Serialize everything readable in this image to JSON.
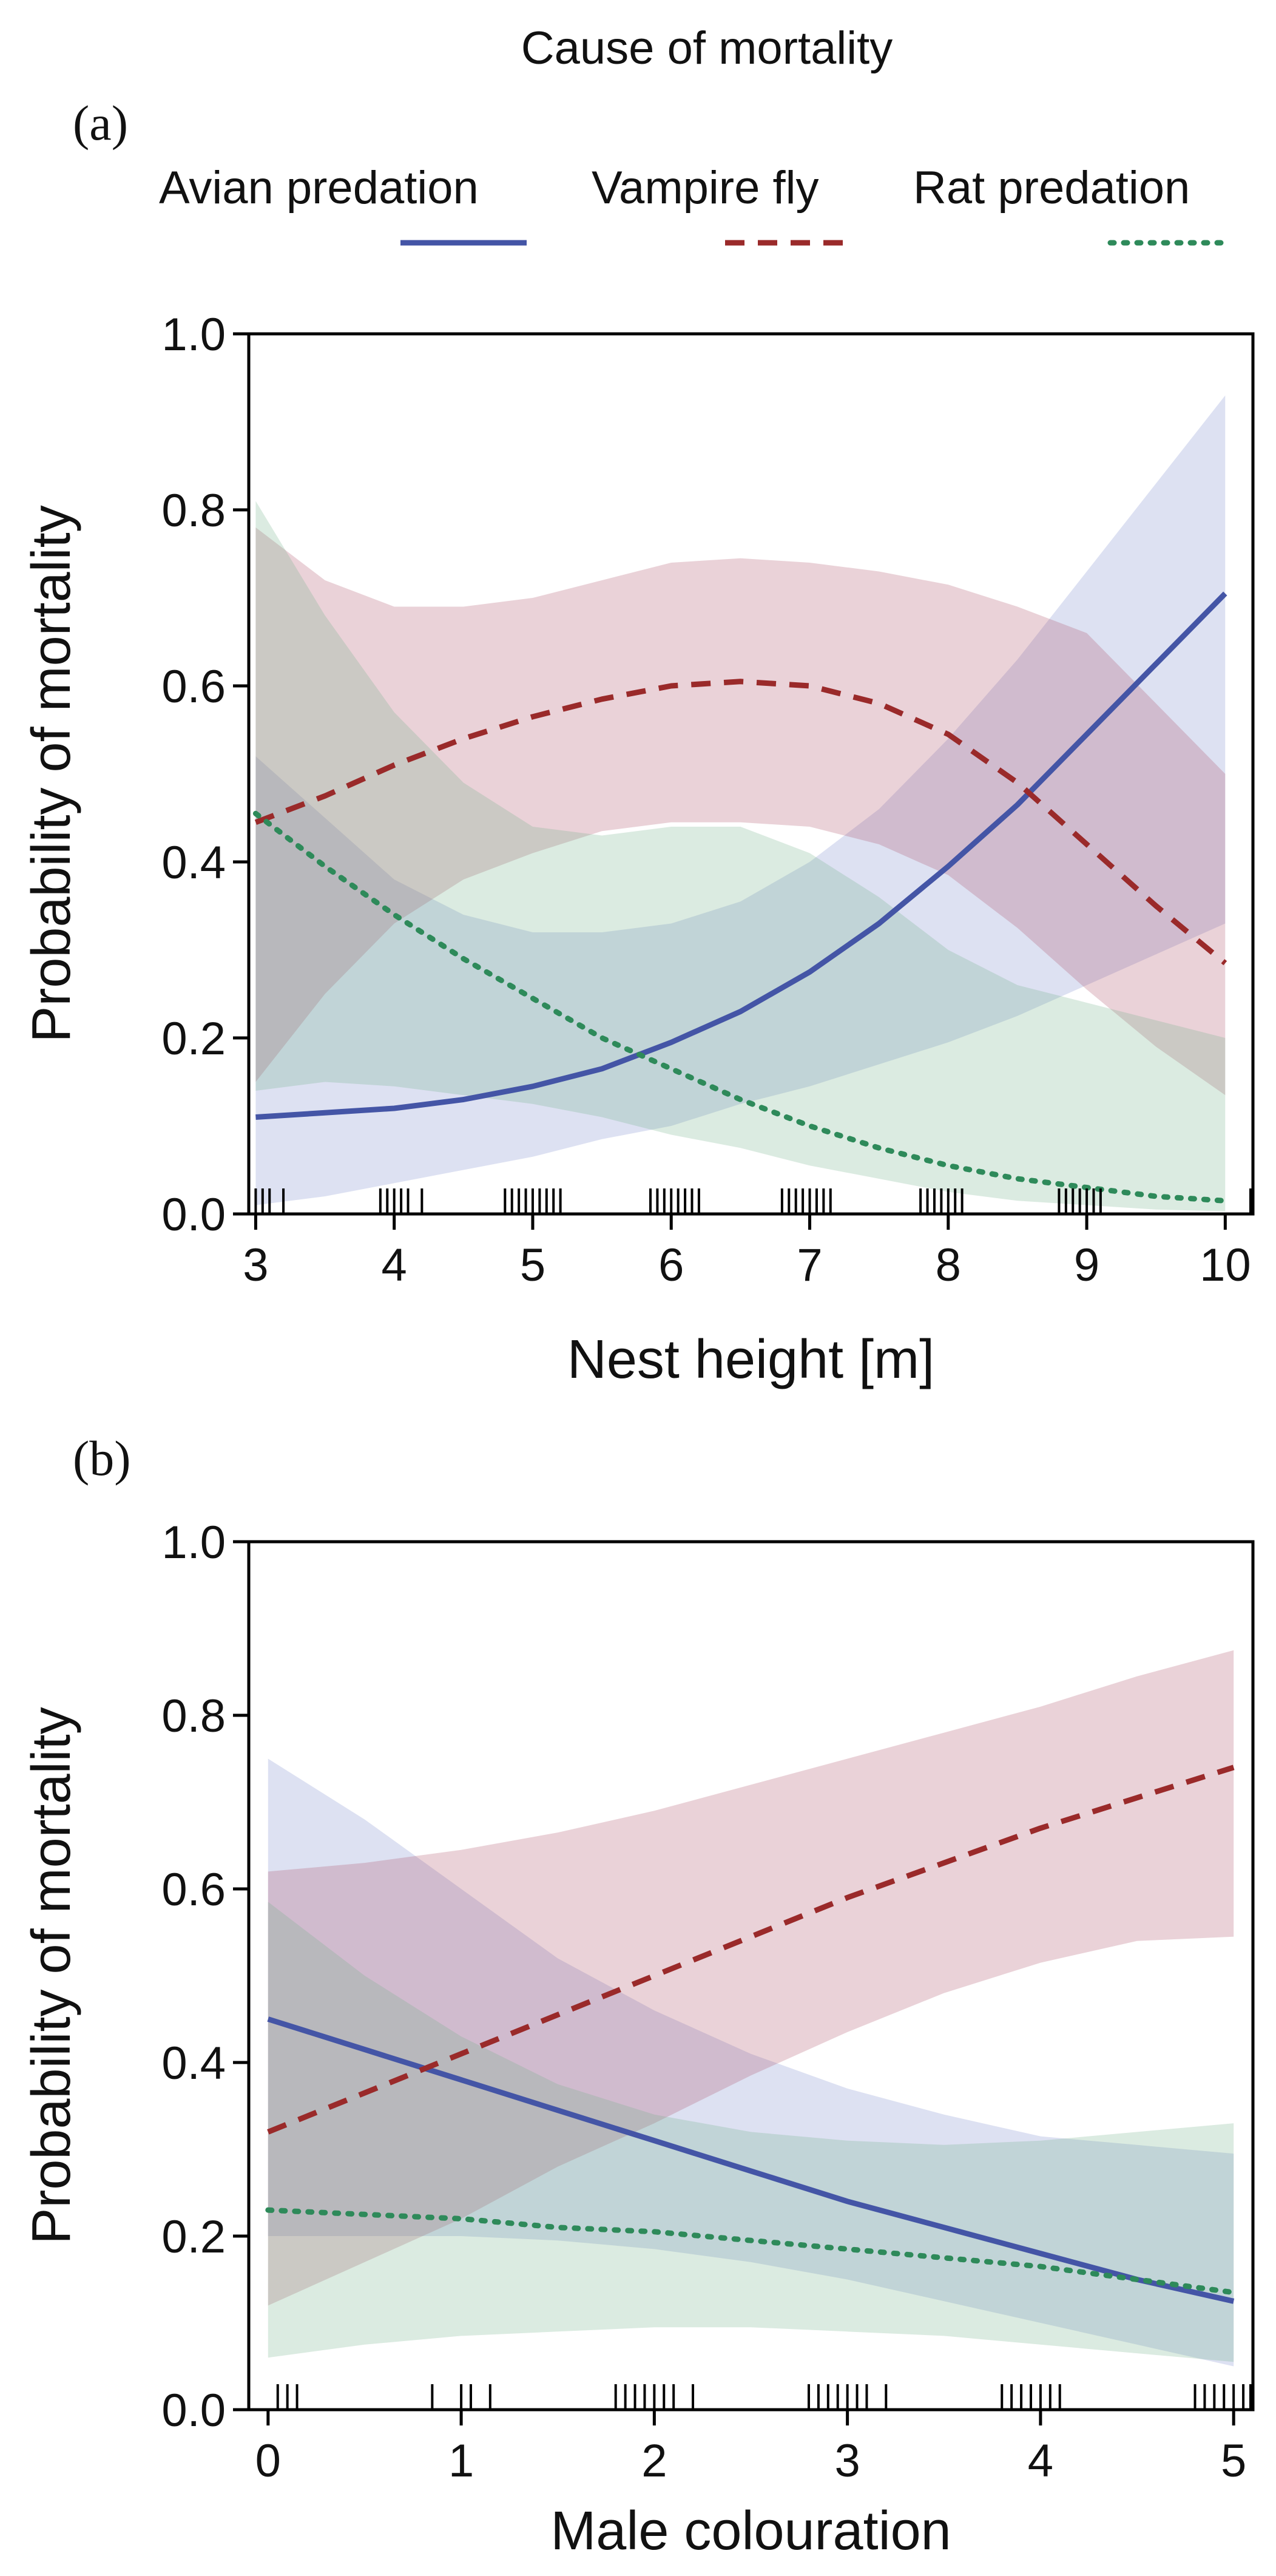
{
  "legend": {
    "title": "Cause of mortality",
    "entries": [
      {
        "label": "Avian predation",
        "color": "#4455a6",
        "dash": "solid"
      },
      {
        "label": "Vampire fly",
        "color": "#9a2a2a",
        "dash": "dashed"
      },
      {
        "label": "Rat predation",
        "color": "#2e8a5a",
        "dash": "dotted"
      }
    ]
  },
  "chart_data": [
    {
      "panel_label": "(a)",
      "type": "line",
      "title": "",
      "xlabel": "Nest height [m]",
      "ylabel": "Probability of mortality",
      "xlim": [
        2.95,
        10.2
      ],
      "ylim": [
        0,
        1
      ],
      "xticks": [
        3,
        4,
        5,
        6,
        7,
        8,
        9,
        10
      ],
      "yticks": [
        "0.0",
        "0.2",
        "0.4",
        "0.6",
        "0.8",
        "1.0"
      ],
      "x": [
        3,
        3.5,
        4,
        4.5,
        5,
        5.5,
        6,
        6.5,
        7,
        7.5,
        8,
        8.5,
        9,
        9.5,
        10
      ],
      "series": [
        {
          "name": "Avian predation",
          "color": "#4455a6",
          "dash": "solid",
          "values": [
            0.11,
            0.115,
            0.12,
            0.13,
            0.145,
            0.165,
            0.195,
            0.23,
            0.275,
            0.33,
            0.395,
            0.465,
            0.545,
            0.625,
            0.705
          ],
          "lower": [
            0.01,
            0.02,
            0.035,
            0.05,
            0.065,
            0.085,
            0.1,
            0.125,
            0.145,
            0.17,
            0.195,
            0.225,
            0.26,
            0.295,
            0.33
          ],
          "upper": [
            0.52,
            0.45,
            0.38,
            0.34,
            0.32,
            0.32,
            0.33,
            0.355,
            0.4,
            0.46,
            0.54,
            0.63,
            0.73,
            0.83,
            0.93
          ]
        },
        {
          "name": "Vampire fly",
          "color": "#9a2a2a",
          "dash": "dashed",
          "values": [
            0.445,
            0.475,
            0.51,
            0.54,
            0.565,
            0.585,
            0.6,
            0.605,
            0.6,
            0.58,
            0.545,
            0.49,
            0.42,
            0.35,
            0.285
          ],
          "lower": [
            0.15,
            0.25,
            0.33,
            0.38,
            0.41,
            0.435,
            0.445,
            0.445,
            0.44,
            0.42,
            0.385,
            0.325,
            0.255,
            0.19,
            0.135
          ],
          "upper": [
            0.78,
            0.72,
            0.69,
            0.69,
            0.7,
            0.72,
            0.74,
            0.745,
            0.74,
            0.73,
            0.715,
            0.69,
            0.66,
            0.58,
            0.5
          ]
        },
        {
          "name": "Rat predation",
          "color": "#2e8a5a",
          "dash": "dotted",
          "values": [
            0.455,
            0.395,
            0.34,
            0.29,
            0.245,
            0.2,
            0.165,
            0.13,
            0.1,
            0.075,
            0.055,
            0.04,
            0.03,
            0.02,
            0.015
          ],
          "lower": [
            0.14,
            0.15,
            0.145,
            0.135,
            0.125,
            0.11,
            0.09,
            0.075,
            0.055,
            0.04,
            0.025,
            0.015,
            0.01,
            0.005,
            0.003
          ],
          "upper": [
            0.81,
            0.68,
            0.57,
            0.49,
            0.44,
            0.43,
            0.44,
            0.44,
            0.41,
            0.36,
            0.3,
            0.26,
            0.24,
            0.22,
            0.2
          ]
        }
      ],
      "rug": [
        3,
        3.05,
        3.1,
        3.2,
        3.9,
        3.95,
        4,
        4.05,
        4.1,
        4.2,
        4.8,
        4.85,
        4.9,
        4.95,
        5,
        5.05,
        5.1,
        5.15,
        5.2,
        5.85,
        5.9,
        5.95,
        6,
        6.05,
        6.1,
        6.15,
        6.2,
        6.8,
        6.85,
        6.9,
        6.95,
        7,
        7.05,
        7.1,
        7.15,
        7.8,
        7.85,
        7.9,
        7.95,
        8,
        8.05,
        8.1,
        8.8,
        8.85,
        8.9,
        8.95,
        9,
        9.05,
        9.1,
        10.2
      ]
    },
    {
      "panel_label": "(b)",
      "type": "line",
      "title": "",
      "xlabel": "Male colouration",
      "ylabel": "Probability of mortality",
      "xlim": [
        -0.1,
        5.1
      ],
      "ylim": [
        0,
        1
      ],
      "xticks": [
        0,
        1,
        2,
        3,
        4,
        5
      ],
      "yticks": [
        "0.0",
        "0.2",
        "0.4",
        "0.6",
        "0.8",
        "1.0"
      ],
      "x": [
        0,
        0.5,
        1,
        1.5,
        2,
        2.5,
        3,
        3.5,
        4,
        4.5,
        5
      ],
      "series": [
        {
          "name": "Avian predation",
          "color": "#4455a6",
          "dash": "solid",
          "values": [
            0.45,
            0.415,
            0.38,
            0.345,
            0.31,
            0.275,
            0.24,
            0.21,
            0.18,
            0.15,
            0.125
          ],
          "lower": [
            0.2,
            0.2,
            0.2,
            0.195,
            0.185,
            0.17,
            0.15,
            0.125,
            0.1,
            0.075,
            0.05
          ],
          "upper": [
            0.75,
            0.68,
            0.6,
            0.52,
            0.46,
            0.41,
            0.37,
            0.34,
            0.315,
            0.305,
            0.295
          ]
        },
        {
          "name": "Vampire fly",
          "color": "#9a2a2a",
          "dash": "dashed",
          "values": [
            0.32,
            0.365,
            0.41,
            0.455,
            0.5,
            0.545,
            0.59,
            0.63,
            0.67,
            0.705,
            0.74
          ],
          "lower": [
            0.12,
            0.17,
            0.22,
            0.28,
            0.33,
            0.385,
            0.435,
            0.48,
            0.515,
            0.54,
            0.545
          ],
          "upper": [
            0.62,
            0.63,
            0.645,
            0.665,
            0.69,
            0.72,
            0.75,
            0.78,
            0.81,
            0.845,
            0.875
          ]
        },
        {
          "name": "Rat predation",
          "color": "#2e8a5a",
          "dash": "dotted",
          "values": [
            0.23,
            0.225,
            0.22,
            0.21,
            0.205,
            0.195,
            0.185,
            0.175,
            0.165,
            0.15,
            0.135
          ],
          "lower": [
            0.06,
            0.075,
            0.085,
            0.09,
            0.095,
            0.095,
            0.09,
            0.085,
            0.075,
            0.065,
            0.055
          ],
          "upper": [
            0.585,
            0.5,
            0.43,
            0.375,
            0.34,
            0.32,
            0.31,
            0.305,
            0.31,
            0.32,
            0.33
          ]
        }
      ],
      "rug": [
        0.05,
        0.1,
        0.15,
        0.85,
        1,
        1.05,
        1.15,
        1.8,
        1.85,
        1.9,
        1.95,
        2,
        2.05,
        2.1,
        2.2,
        2.8,
        2.85,
        2.9,
        2.95,
        3,
        3.05,
        3.1,
        3.2,
        3.8,
        3.85,
        3.9,
        3.95,
        4,
        4.05,
        4.1,
        4.8,
        4.85,
        4.9,
        4.95,
        5,
        5.05,
        5.1
      ]
    }
  ]
}
